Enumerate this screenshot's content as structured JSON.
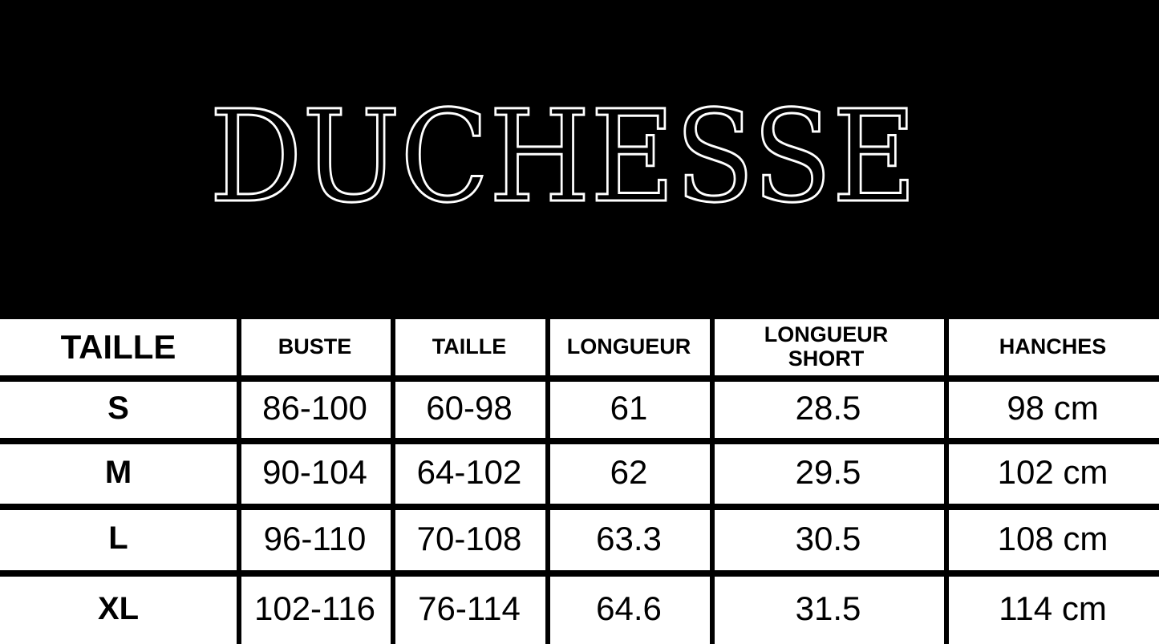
{
  "brand": {
    "title": "DUCHESSE"
  },
  "table": {
    "headers": [
      "TAILLE",
      "BUSTE",
      "TAILLE",
      "LONGUEUR",
      "LONGUEUR SHORT",
      "HANCHES"
    ],
    "rows": [
      [
        "S",
        "86-100",
        "60-98",
        "61",
        "28.5",
        "98 cm"
      ],
      [
        "M",
        "90-104",
        "64-102",
        "62",
        "29.5",
        "102 cm"
      ],
      [
        "L",
        "96-110",
        "70-108",
        "63.3",
        "30.5",
        "108 cm"
      ],
      [
        "XL",
        "102-116",
        "76-114",
        "64.6",
        "31.5",
        "114 cm"
      ]
    ]
  },
  "colors": {
    "background": "#000000",
    "title_outline": "#ffffff",
    "table_bg": "#ffffff",
    "lines": "#000000"
  }
}
